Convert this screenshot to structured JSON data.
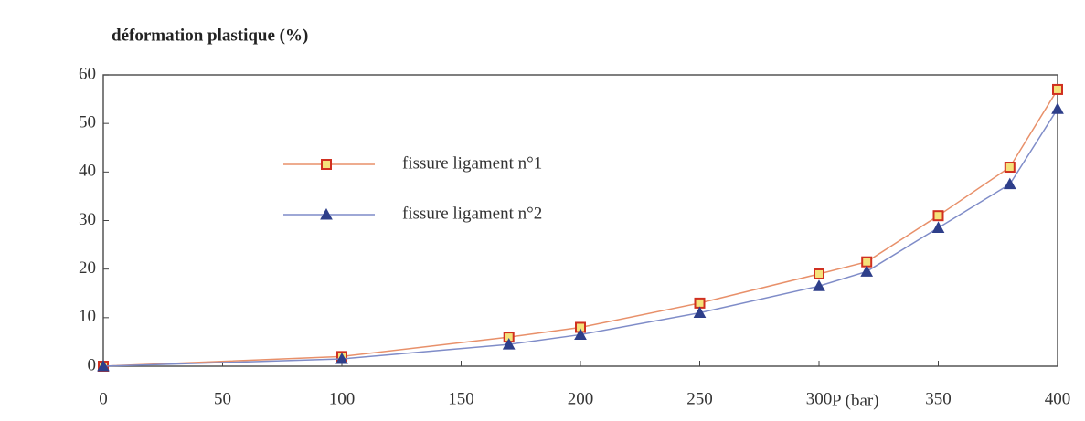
{
  "chart_data": {
    "type": "line",
    "title": "déformation plastique (%)",
    "x_label": "P (bar)",
    "x": [
      0,
      100,
      170,
      200,
      250,
      300,
      320,
      350,
      380,
      400
    ],
    "series": [
      {
        "name": "fissure ligament n°1",
        "color": "#e8906a",
        "marker": "square",
        "values": [
          0,
          2,
          6,
          8,
          13,
          19,
          21.5,
          31,
          41,
          57
        ]
      },
      {
        "name": "fissure ligament n°2",
        "color": "#7f8cc8",
        "marker": "triangle",
        "values": [
          0,
          1.5,
          4.5,
          6.5,
          11,
          16.5,
          19.5,
          28.5,
          37.5,
          53
        ]
      }
    ],
    "xlim": [
      0,
      400
    ],
    "xticks": [
      0,
      50,
      100,
      150,
      200,
      250,
      300,
      350,
      400
    ],
    "ylim": [
      0,
      60
    ],
    "yticks": [
      0,
      10,
      20,
      30,
      40,
      50,
      60
    ],
    "grid": false
  }
}
